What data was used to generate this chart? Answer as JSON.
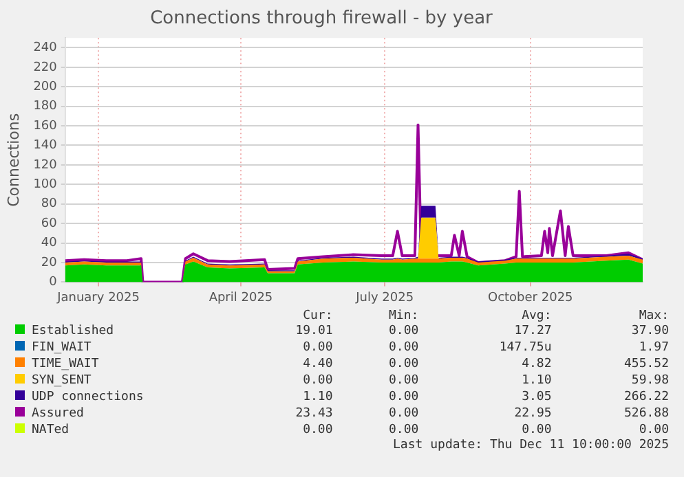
{
  "chart_data": {
    "type": "area",
    "title": "Connections through firewall - by year",
    "ylabel": "Connections",
    "stacked": true,
    "legend": "bottom",
    "grid": true,
    "x": [
      "2024-12-11",
      "2024-12-23",
      "2025-01-06",
      "2025-01-19",
      "2025-01-28",
      "2025-01-29",
      "2025-02-23",
      "2025-02-25",
      "2025-03-02",
      "2025-03-11",
      "2025-03-25",
      "2025-04-16",
      "2025-04-18",
      "2025-05-05",
      "2025-05-07",
      "2025-05-23",
      "2025-06-11",
      "2025-06-29",
      "2025-07-06",
      "2025-07-09",
      "2025-07-12",
      "2025-07-20",
      "2025-07-22",
      "2025-07-24",
      "2025-08-02",
      "2025-08-04",
      "2025-08-12",
      "2025-08-14",
      "2025-08-17",
      "2025-08-19",
      "2025-08-22",
      "2025-08-29",
      "2025-09-15",
      "2025-09-22",
      "2025-09-24",
      "2025-09-26",
      "2025-10-08",
      "2025-10-10",
      "2025-10-12",
      "2025-10-13",
      "2025-10-15",
      "2025-10-20",
      "2025-10-23",
      "2025-10-25",
      "2025-10-28",
      "2025-11-18",
      "2025-12-02",
      "2025-12-11"
    ],
    "series": [
      {
        "name": "Established",
        "color": "#00cc00",
        "values": [
          17,
          18,
          17,
          17,
          17,
          0,
          0,
          18,
          21,
          15,
          14,
          15,
          9,
          9,
          18,
          20,
          21,
          20,
          20,
          20,
          20,
          20,
          20,
          20,
          20,
          20,
          21,
          21,
          21,
          21,
          20,
          17,
          19,
          20,
          20,
          20,
          20,
          20,
          20,
          20,
          20,
          20,
          20,
          20,
          20,
          22,
          23,
          19
        ]
      },
      {
        "name": "FIN_WAIT",
        "color": "#0066b3",
        "values": [
          null,
          null,
          null,
          null,
          null,
          null,
          null,
          null,
          null,
          null,
          null,
          null,
          null,
          null,
          null,
          null,
          null,
          null,
          null,
          null,
          null,
          null,
          null,
          null,
          null,
          null,
          null,
          null,
          null,
          null,
          null,
          null,
          null,
          null,
          null,
          null,
          null,
          null,
          null,
          null,
          null,
          null,
          null,
          null,
          null,
          null,
          null,
          null
        ]
      },
      {
        "name": "TIME_WAIT",
        "color": "#ff8000",
        "values": [
          3,
          3,
          3,
          3,
          3,
          0,
          0,
          3,
          4,
          3,
          3,
          3,
          2,
          2,
          3,
          4,
          4,
          3,
          3,
          4,
          3,
          4,
          4,
          4,
          4,
          4,
          4,
          4,
          4,
          4,
          4,
          3,
          3,
          4,
          4,
          4,
          4,
          4,
          4,
          4,
          4,
          4,
          4,
          4,
          4,
          4,
          4,
          4
        ]
      },
      {
        "name": "SYN_SENT",
        "color": "#ffcc00",
        "values": [
          0,
          0,
          0,
          0,
          0,
          0,
          0,
          0,
          0,
          0,
          0,
          0,
          0,
          0,
          0,
          0,
          0,
          0,
          0,
          0,
          0,
          0,
          0,
          42,
          42,
          0,
          0,
          0,
          0,
          0,
          0,
          0,
          0,
          0,
          0,
          0,
          0,
          0,
          0,
          0,
          0,
          0,
          0,
          0,
          0,
          0,
          0,
          0
        ]
      },
      {
        "name": "UDP connections",
        "color": "#330099",
        "values": [
          1,
          1,
          1,
          1,
          1,
          0,
          0,
          1,
          1,
          1,
          1,
          1,
          1,
          1,
          1,
          1,
          1,
          1,
          1,
          1,
          1,
          1,
          2,
          12,
          12,
          1,
          1,
          1,
          1,
          1,
          1,
          1,
          1,
          1,
          1,
          1,
          1,
          1,
          1,
          1,
          1,
          1,
          1,
          1,
          1,
          1,
          2,
          1
        ]
      },
      {
        "name": "Assured",
        "type": "line",
        "color": "#990099",
        "values": [
          22,
          23,
          22,
          22,
          24,
          0,
          0,
          24,
          29,
          22,
          21,
          23,
          13,
          14,
          24,
          26,
          28,
          27,
          27,
          52,
          27,
          27,
          161,
          27,
          27,
          27,
          27,
          48,
          27,
          52,
          26,
          20,
          22,
          26,
          93,
          26,
          27,
          52,
          30,
          55,
          27,
          73,
          27,
          57,
          27,
          27,
          30,
          23
        ]
      },
      {
        "name": "NATed",
        "type": "line",
        "color": "#ccff00",
        "values": [
          null,
          null,
          null,
          null,
          null,
          null,
          null,
          null,
          null,
          null,
          null,
          null,
          null,
          null,
          null,
          null,
          null,
          null,
          null,
          null,
          null,
          null,
          null,
          null,
          null,
          null,
          null,
          null,
          null,
          null,
          null,
          null,
          null,
          null,
          null,
          null,
          null,
          null,
          null,
          null,
          null,
          null,
          null,
          null,
          null,
          null,
          null,
          null
        ]
      }
    ],
    "xlim": [
      "2024-12-11",
      "2025-12-11"
    ],
    "xticks": [
      {
        "value": "2025-01-01",
        "label": "January 2025"
      },
      {
        "value": "2025-04-01",
        "label": "April 2025"
      },
      {
        "value": "2025-07-01",
        "label": "July 2025"
      },
      {
        "value": "2025-10-01",
        "label": "October 2025"
      }
    ],
    "ylim": [
      0,
      250
    ],
    "yticks": [
      0,
      20,
      40,
      60,
      80,
      100,
      120,
      140,
      160,
      180,
      200,
      220,
      240
    ],
    "annotations": [
      "Cur:",
      "Min:",
      "Avg:",
      "Max:",
      "19.01",
      "0.00",
      "17.27",
      "37.90",
      "0.00",
      "0.00",
      "147.75u",
      "1.97",
      "4.40",
      "0.00",
      "4.82",
      "455.52",
      "0.00",
      "0.00",
      "1.10",
      "59.98",
      "1.10",
      "0.00",
      "3.05",
      "266.22",
      "23.43",
      "0.00",
      "22.95",
      "526.88",
      "0.00",
      "0.00",
      "0.00",
      "0.00",
      "Last update: Thu Dec 11 10:00:00 2025"
    ]
  }
}
